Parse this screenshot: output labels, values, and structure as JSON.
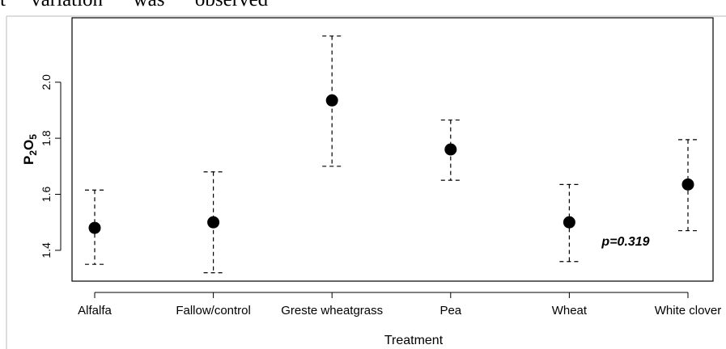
{
  "page_text": {
    "top_fragment": "t     variation      was      observed"
  },
  "chart_data": {
    "type": "scatter",
    "chart_subtype": "point-with-error-bars",
    "categories": [
      "Alfalfa",
      "Fallow/control",
      "Greste wheatgrass",
      "Pea",
      "Wheat",
      "White clover"
    ],
    "series": [
      {
        "values": [
          1.48,
          1.5,
          1.935,
          1.76,
          1.5,
          1.635
        ],
        "lower": [
          1.35,
          1.32,
          1.7,
          1.65,
          1.36,
          1.47
        ],
        "upper": [
          1.615,
          1.68,
          2.165,
          1.865,
          1.635,
          1.795
        ],
        "color": "#000000"
      }
    ],
    "xlabel": "Treatment",
    "ylabel_main": "P",
    "ylabel_sub1": "2",
    "ylabel_mid": "O",
    "ylabel_sub2": "5",
    "ylim": [
      1.29,
      2.23
    ],
    "yticks": [
      1.4,
      1.6,
      1.8,
      2.0
    ],
    "ytick_labels": [
      "1.4",
      "1.6",
      "1.8",
      "2.0"
    ],
    "annotation": "p=0.319",
    "grid": false,
    "legend": "none"
  }
}
